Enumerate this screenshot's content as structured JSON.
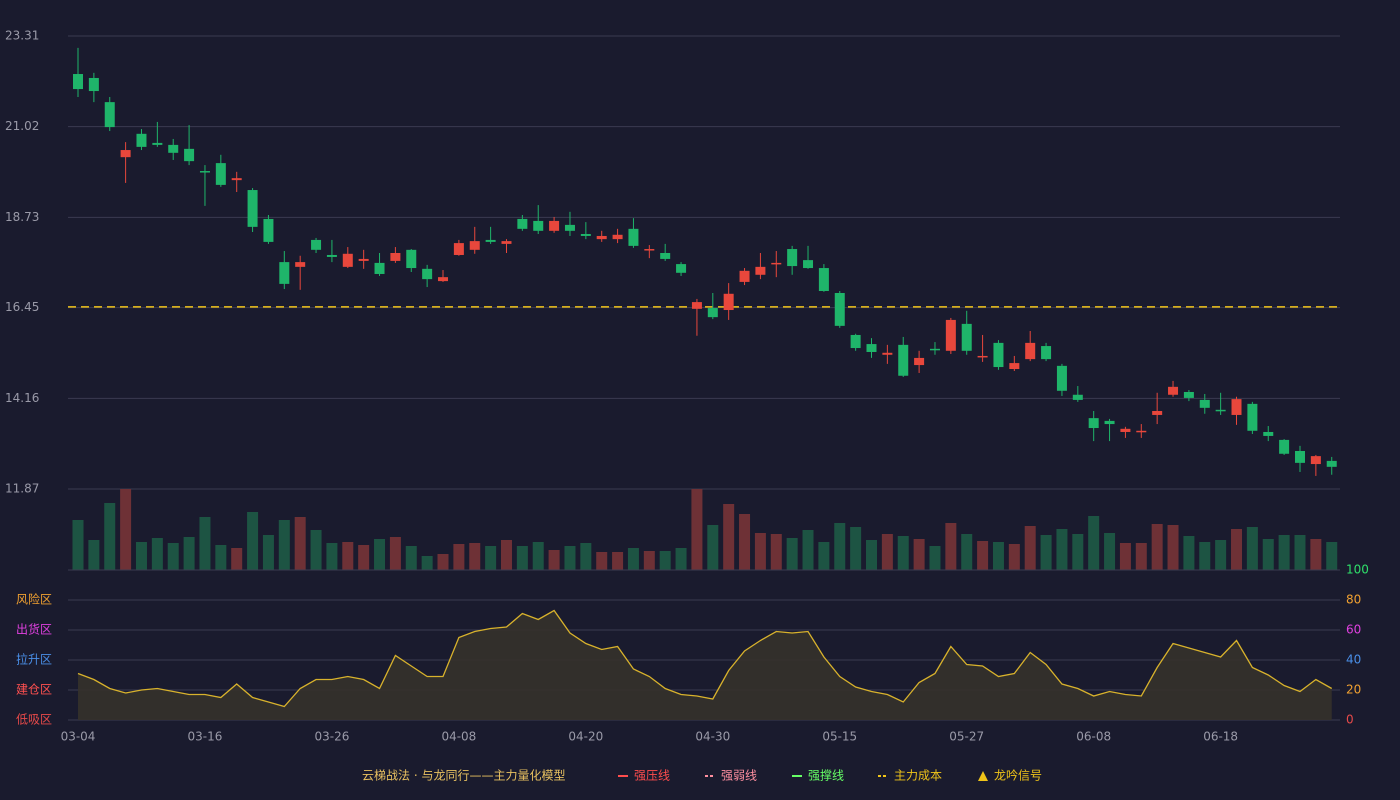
{
  "chart_data": [
    {
      "type": "candlestick",
      "categories": [
        "03-04",
        null,
        null,
        null,
        null,
        null,
        null,
        null,
        "03-16",
        null,
        null,
        null,
        null,
        null,
        null,
        null,
        "03-26",
        null,
        null,
        null,
        null,
        null,
        null,
        null,
        "04-08",
        null,
        null,
        null,
        null,
        null,
        null,
        null,
        "04-20",
        null,
        null,
        null,
        null,
        null,
        null,
        null,
        "04-30",
        null,
        null,
        null,
        null,
        null,
        null,
        null,
        "05-15",
        null,
        null,
        null,
        null,
        null,
        null,
        null,
        "05-27",
        null,
        null,
        null,
        null,
        null,
        null,
        null,
        "06-08",
        null,
        null,
        null,
        null,
        null,
        null,
        null,
        "06-18",
        null,
        null,
        null,
        null,
        null,
        null,
        null
      ],
      "open": [
        22.35,
        22.25,
        21.64,
        20.25,
        20.84,
        20.61,
        20.56,
        20.46,
        19.9,
        20.1,
        19.67,
        19.42,
        18.69,
        17.6,
        17.48,
        18.16,
        17.78,
        17.48,
        17.63,
        17.58,
        17.63,
        17.91,
        17.43,
        17.12,
        17.78,
        17.91,
        18.16,
        18.06,
        18.69,
        18.64,
        18.39,
        18.54,
        18.31,
        18.18,
        18.18,
        18.44,
        17.91,
        17.83,
        17.55,
        16.42,
        16.44,
        16.39,
        17.1,
        17.28,
        17.55,
        17.93,
        17.65,
        17.45,
        16.82,
        15.76,
        15.53,
        15.26,
        15.51,
        15.0,
        15.41,
        15.36,
        16.04,
        15.21,
        15.56,
        14.9,
        15.15,
        15.48,
        14.98,
        14.25,
        13.66,
        13.59,
        13.31,
        13.31,
        13.74,
        14.25,
        14.32,
        14.12,
        13.87,
        13.74,
        14.02,
        13.31,
        13.11,
        12.83,
        12.5,
        12.58
      ],
      "high": [
        23.01,
        22.38,
        21.77,
        20.63,
        20.96,
        21.14,
        20.71,
        21.06,
        20.05,
        20.31,
        19.88,
        19.47,
        18.79,
        17.88,
        17.76,
        18.21,
        18.16,
        17.98,
        17.91,
        17.83,
        17.98,
        17.93,
        17.53,
        17.4,
        18.16,
        18.49,
        18.49,
        18.18,
        18.79,
        19.04,
        18.74,
        18.87,
        18.61,
        18.39,
        18.44,
        18.71,
        18.03,
        18.06,
        17.6,
        16.67,
        16.82,
        17.07,
        17.45,
        17.83,
        17.88,
        18.01,
        18.01,
        17.55,
        16.87,
        15.79,
        15.68,
        15.51,
        15.71,
        15.36,
        15.58,
        16.19,
        16.37,
        15.76,
        15.63,
        15.23,
        15.86,
        15.56,
        15.03,
        14.47,
        13.84,
        13.64,
        13.44,
        13.51,
        14.3,
        14.6,
        14.37,
        14.27,
        14.3,
        14.2,
        14.07,
        13.46,
        13.13,
        12.96,
        12.73,
        12.68
      ],
      "low": [
        21.77,
        21.64,
        20.91,
        19.6,
        20.43,
        20.51,
        20.18,
        20.05,
        19.02,
        19.5,
        19.37,
        18.36,
        18.06,
        16.92,
        16.9,
        17.83,
        17.6,
        17.45,
        17.43,
        17.25,
        17.58,
        17.35,
        16.97,
        17.1,
        17.76,
        17.81,
        18.06,
        17.83,
        18.39,
        18.31,
        18.34,
        18.26,
        18.18,
        18.11,
        18.08,
        17.96,
        17.7,
        17.63,
        17.25,
        15.74,
        16.16,
        16.14,
        17.02,
        17.17,
        17.22,
        17.28,
        17.43,
        16.85,
        15.94,
        15.36,
        15.18,
        15.03,
        14.7,
        14.8,
        15.26,
        15.28,
        15.26,
        15.08,
        14.88,
        14.85,
        15.1,
        15.1,
        14.22,
        14.07,
        13.08,
        13.08,
        13.16,
        13.16,
        13.51,
        14.2,
        14.09,
        13.77,
        13.74,
        13.49,
        13.26,
        13.08,
        12.73,
        12.3,
        12.2,
        12.23
      ],
      "close": [
        21.97,
        21.92,
        21.01,
        20.43,
        20.51,
        20.56,
        20.36,
        20.15,
        19.88,
        19.55,
        19.72,
        18.49,
        18.11,
        17.05,
        17.6,
        17.91,
        17.73,
        17.81,
        17.68,
        17.3,
        17.83,
        17.45,
        17.17,
        17.22,
        18.08,
        18.13,
        18.11,
        18.13,
        18.44,
        18.39,
        18.64,
        18.39,
        18.26,
        18.26,
        18.29,
        18.01,
        17.93,
        17.68,
        17.33,
        16.59,
        16.21,
        16.8,
        17.38,
        17.48,
        17.58,
        17.5,
        17.45,
        16.87,
        15.99,
        15.43,
        15.33,
        15.31,
        14.73,
        15.18,
        15.38,
        16.14,
        15.36,
        15.23,
        14.95,
        15.05,
        15.56,
        15.15,
        14.35,
        14.12,
        13.41,
        13.51,
        13.39,
        13.34,
        13.84,
        14.45,
        14.17,
        13.92,
        13.84,
        14.14,
        13.34,
        13.21,
        12.76,
        12.53,
        12.7,
        12.43
      ],
      "up_color": "#e8473c",
      "down_color": "#1fb56a",
      "ylim": [
        11.87,
        23.31
      ],
      "yticks": [
        23.31,
        21.02,
        18.73,
        16.45,
        14.16,
        11.87
      ],
      "grid": true,
      "cost_line": 16.47,
      "cost_color": "#f0c419"
    },
    {
      "type": "bar",
      "values": [
        50,
        30,
        67,
        81,
        28,
        32,
        27,
        33,
        53,
        25,
        22,
        58,
        35,
        50,
        53,
        40,
        27,
        28,
        25,
        31,
        33,
        24,
        14,
        16,
        26,
        27,
        24,
        30,
        24,
        28,
        20,
        24,
        27,
        18,
        18,
        22,
        19,
        19,
        22,
        81,
        45,
        66,
        56,
        37,
        36,
        32,
        40,
        28,
        47,
        43,
        30,
        36,
        34,
        31,
        24,
        47,
        36,
        29,
        28,
        26,
        44,
        35,
        41,
        36,
        54,
        37,
        27,
        27,
        46,
        45,
        34,
        28,
        30,
        41,
        43,
        31,
        35,
        35,
        31,
        28
      ],
      "up_color": "#6e3136",
      "down_color": "#1d5443",
      "ylim": [
        0,
        81
      ]
    },
    {
      "type": "area",
      "values": [
        31,
        27,
        21,
        18,
        20,
        21,
        19,
        17,
        17,
        15,
        24,
        15,
        12,
        9,
        21,
        27,
        27,
        29,
        27,
        21,
        43,
        36,
        29,
        29,
        55,
        59,
        61,
        62,
        71,
        67,
        73,
        58,
        51,
        47,
        49,
        34,
        29,
        21,
        17,
        16,
        14,
        33,
        46,
        53,
        59,
        58,
        59,
        42,
        29,
        22,
        19,
        17,
        12,
        25,
        31,
        49,
        37,
        36,
        29,
        31,
        45,
        37,
        24,
        21,
        16,
        19,
        17,
        16,
        35,
        51,
        48,
        45,
        42,
        53,
        35,
        30,
        23,
        19,
        27,
        21
      ],
      "color": "#d8b22c",
      "fill": "#35322b",
      "ylim": [
        0,
        100
      ],
      "yticks": [
        0,
        20,
        40,
        60,
        80,
        100
      ],
      "ytick_colors": [
        "#e84a4a",
        "#f0a030",
        "#4a8fe8",
        "#e040e0",
        "#f0a030",
        "#2ee06a"
      ],
      "zones": [
        {
          "label": "风险区",
          "value": 80,
          "color": "#f0a030"
        },
        {
          "label": "出货区",
          "value": 60,
          "color": "#e040e0"
        },
        {
          "label": "拉升区",
          "value": 40,
          "color": "#4a8fe8"
        },
        {
          "label": "建仓区",
          "value": 20,
          "color": "#ff5050"
        },
        {
          "label": "低吸区",
          "value": 0,
          "color": "#e84a4a"
        }
      ]
    }
  ],
  "legend": {
    "title": "云梯战法 · 与龙同行——主力量化模型",
    "title_color": "#e8c060",
    "items": [
      {
        "name": "强压线",
        "color": "#ff4d4d",
        "style": "solid"
      },
      {
        "name": "强弱线",
        "color": "#ff8fa0",
        "style": "dashed"
      },
      {
        "name": "强撑线",
        "color": "#66ff66",
        "style": "solid"
      },
      {
        "name": "主力成本",
        "color": "#f0c419",
        "style": "dashed"
      },
      {
        "name": "龙吟信号",
        "color": "#f0c419",
        "style": "triangle"
      }
    ]
  }
}
